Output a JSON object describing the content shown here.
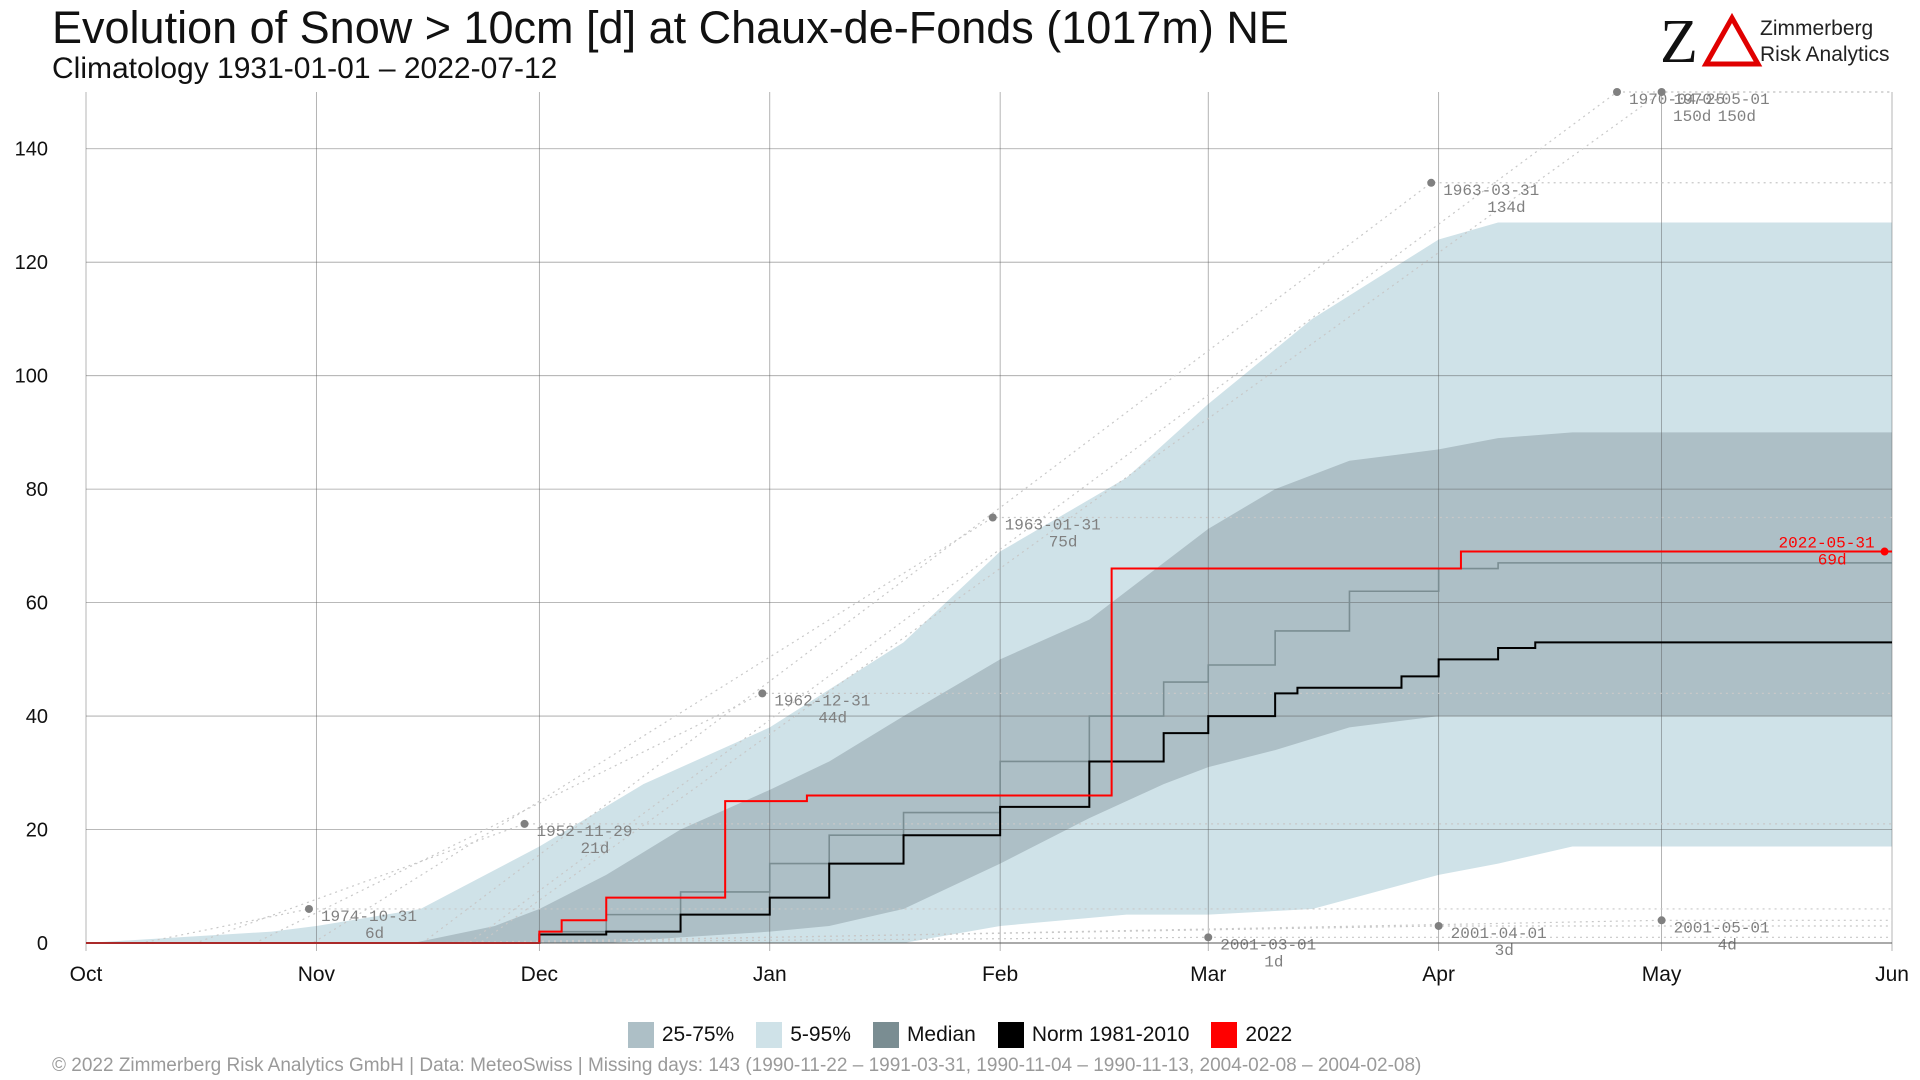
{
  "title": "Evolution of Snow > 10cm [d] at Chaux-de-Fonds (1017m) NE",
  "subtitle": "Climatology 1931-01-01 – 2022-07-12",
  "logo": {
    "text_line1": "Zimmerberg",
    "text_line2": "Risk Analytics",
    "mark_color": "#e00000"
  },
  "footer": "©  2022 Zimmerberg Risk Analytics GmbH | Data: MeteoSwiss | Missing days: 143 (1990-11-22 – 1991-03-31, 1990-11-04 – 1990-11-13, 2004-02-08 – 2004-02-08)",
  "legend": [
    {
      "label": "25-75%",
      "color": "#adbfc6"
    },
    {
      "label": "5-95%",
      "color": "#cfe2e8"
    },
    {
      "label": "Median",
      "color": "#7a8d92"
    },
    {
      "label": "Norm 1981-2010",
      "color": "#000000"
    },
    {
      "label": "2022",
      "color": "#ff0000"
    }
  ],
  "chart_data": {
    "type": "area",
    "x_unit": "day of season (0 = Oct 1)",
    "xlim": [
      0,
      243
    ],
    "ylim": [
      0,
      150
    ],
    "x_ticks": [
      {
        "day": 0,
        "label": "Oct"
      },
      {
        "day": 31,
        "label": "Nov"
      },
      {
        "day": 61,
        "label": "Dec"
      },
      {
        "day": 92,
        "label": "Jan"
      },
      {
        "day": 123,
        "label": "Feb"
      },
      {
        "day": 151,
        "label": "Mar"
      },
      {
        "day": 182,
        "label": "Apr"
      },
      {
        "day": 212,
        "label": "May"
      },
      {
        "day": 243,
        "label": "Jun"
      }
    ],
    "y_ticks": [
      0,
      20,
      40,
      60,
      80,
      100,
      120,
      140
    ],
    "grid": true,
    "band_5_95": {
      "x": [
        0,
        25,
        31,
        45,
        61,
        75,
        92,
        110,
        123,
        140,
        151,
        165,
        182,
        190,
        200,
        243
      ],
      "lo": [
        0,
        0,
        0,
        0,
        0,
        0,
        0,
        0,
        3,
        5,
        5,
        6,
        12,
        14,
        17,
        17
      ],
      "hi": [
        0,
        2,
        3,
        6,
        17,
        28,
        38,
        53,
        69,
        82,
        95,
        110,
        124,
        127,
        127,
        127
      ]
    },
    "band_25_75": {
      "x": [
        0,
        44,
        55,
        61,
        70,
        80,
        92,
        100,
        110,
        123,
        135,
        145,
        151,
        160,
        170,
        182,
        190,
        200,
        243
      ],
      "lo": [
        0,
        0,
        0,
        0,
        0,
        1,
        2,
        3,
        6,
        14,
        22,
        28,
        31,
        34,
        38,
        40,
        40,
        40,
        40
      ],
      "hi": [
        0,
        0,
        3,
        6,
        12,
        20,
        27,
        32,
        40,
        50,
        57,
        67,
        73,
        80,
        85,
        87,
        89,
        90,
        90
      ]
    },
    "series": [
      {
        "name": "Median",
        "color": "#7a8d92",
        "x": [
          0,
          57,
          61,
          70,
          80,
          92,
          100,
          110,
          123,
          135,
          145,
          151,
          160,
          170,
          182,
          190,
          243
        ],
        "y": [
          0,
          0,
          2,
          5,
          9,
          14,
          19,
          23,
          32,
          40,
          46,
          49,
          55,
          62,
          66,
          67,
          67
        ]
      },
      {
        "name": "Norm 1981-2010",
        "color": "#000000",
        "x": [
          0,
          58,
          61,
          70,
          80,
          92,
          100,
          110,
          123,
          135,
          145,
          151,
          160,
          163,
          172,
          177,
          182,
          190,
          195,
          243
        ],
        "y": [
          0,
          0,
          1.5,
          2,
          5,
          8,
          14,
          19,
          24,
          32,
          37,
          40,
          44,
          45,
          45,
          47,
          50,
          52,
          53,
          53
        ]
      },
      {
        "name": "2022",
        "color": "#ff0000",
        "x": [
          0,
          58,
          61,
          64,
          70,
          86,
          96,
          97,
          99,
          138,
          151,
          165,
          183,
          185,
          243
        ],
        "y": [
          0,
          0,
          2,
          4,
          8,
          25,
          25,
          26,
          26,
          66,
          66,
          66,
          66,
          69,
          69
        ]
      }
    ],
    "annotations": [
      {
        "x": 30,
        "y": 6,
        "date": "1974-10-31",
        "value": "6d"
      },
      {
        "x": 59,
        "y": 21,
        "date": "1952-11-29",
        "value": "21d"
      },
      {
        "x": 91,
        "y": 44,
        "date": "1962-12-31",
        "value": "44d"
      },
      {
        "x": 122,
        "y": 75,
        "date": "1963-01-31",
        "value": "75d"
      },
      {
        "x": 151,
        "y": 1,
        "date": "2001-03-01",
        "value": "1d"
      },
      {
        "x": 181,
        "y": 134,
        "date": "1963-03-31",
        "value": "134d"
      },
      {
        "x": 182,
        "y": 3,
        "date": "2001-04-01",
        "value": "3d"
      },
      {
        "x": 206,
        "y": 150,
        "date": "1970-04-25",
        "value": "150d"
      },
      {
        "x": 212,
        "y": 150,
        "date": "1970-05-01",
        "value": "150d"
      },
      {
        "x": 212,
        "y": 4,
        "date": "2001-05-01",
        "value": "4d"
      },
      {
        "x": 242,
        "y": 69,
        "date": "2022-05-31",
        "value": "69d",
        "highlight": true
      }
    ]
  }
}
